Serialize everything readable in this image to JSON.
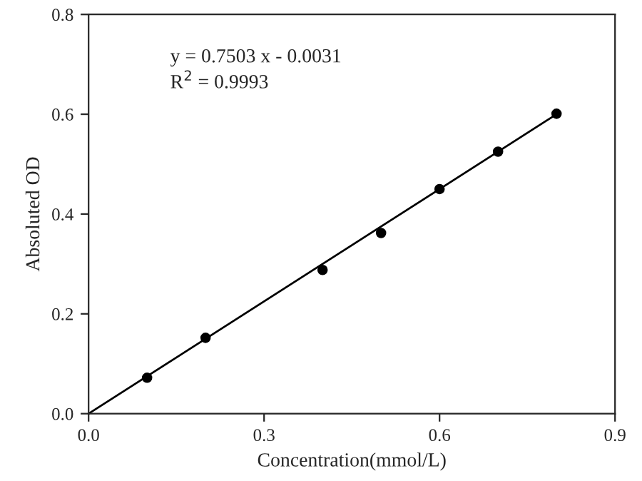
{
  "chart_data": {
    "type": "scatter",
    "xlabel": "Concentration(mmol/L)",
    "ylabel": "Absoluted OD",
    "annotations": [
      "y = 0.7503 x - 0.0031",
      "R$^{2}$ = 0.9993"
    ],
    "series": [
      {
        "color": "#000000",
        "marker": "circle",
        "x": [
          0.1,
          0.2,
          0.4,
          0.5,
          0.6,
          0.7,
          0.8
        ],
        "values": [
          0.072,
          0.152,
          0.288,
          0.362,
          0.45,
          0.525,
          0.601
        ]
      },
      {
        "type": "line",
        "color": "#000000",
        "marker": "none",
        "line_style": "solid",
        "x": [
          0,
          0.8
        ],
        "values": [
          0.0,
          0.6
        ]
      }
    ],
    "xlim": [
      0,
      0.9
    ],
    "ylim": [
      0,
      0.8
    ],
    "xticks": [
      {
        "value": 0,
        "label": "0.0"
      },
      {
        "value": 0.3,
        "label": "0.3"
      },
      {
        "value": 0.6,
        "label": "0.6"
      },
      {
        "value": 0.9,
        "label": "0.9"
      }
    ],
    "yticks": [
      {
        "value": 0,
        "label": "0.0"
      },
      {
        "value": 0.2,
        "label": "0.2"
      },
      {
        "value": 0.4,
        "label": "0.4"
      },
      {
        "value": 0.6,
        "label": "0.6"
      },
      {
        "value": 0.8,
        "label": "0.8"
      }
    ],
    "grid": false,
    "legend": false
  }
}
